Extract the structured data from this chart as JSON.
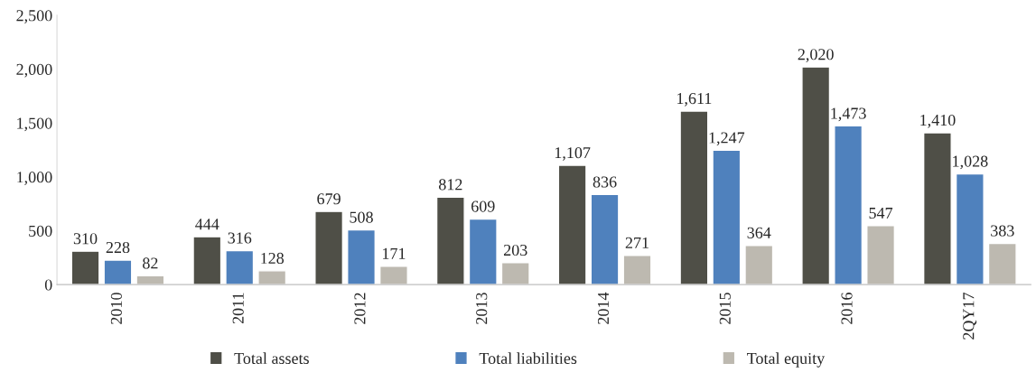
{
  "chart_data": {
    "type": "bar",
    "categories": [
      "2010",
      "2011",
      "2012",
      "2013",
      "2014",
      "2015",
      "2016",
      "2QY17"
    ],
    "series": [
      {
        "name": "Total assets",
        "color": "#4f4f47",
        "values": [
          310,
          444,
          679,
          812,
          1107,
          1611,
          2020,
          1410
        ],
        "value_labels": [
          "310",
          "444",
          "679",
          "812",
          "1,107",
          "1,611",
          "2,020",
          "1,410"
        ]
      },
      {
        "name": "Total liabilities",
        "color": "#4f81bd",
        "values": [
          228,
          316,
          508,
          609,
          836,
          1247,
          1473,
          1028
        ],
        "value_labels": [
          "228",
          "316",
          "508",
          "609",
          "836",
          "1,247",
          "1,473",
          "1,028"
        ]
      },
      {
        "name": "Total equity",
        "color": "#bdb9b0",
        "values": [
          82,
          128,
          171,
          203,
          271,
          364,
          547,
          383
        ],
        "value_labels": [
          "82",
          "128",
          "171",
          "203",
          "271",
          "364",
          "547",
          "383"
        ]
      }
    ],
    "ylim": [
      0,
      2500
    ],
    "yticks": [
      0,
      {
        "value": 500,
        "label": "500"
      },
      {
        "value": 1000,
        "label": "1,000"
      },
      {
        "value": 1500,
        "label": "1,500"
      },
      {
        "value": 2000,
        "label": "2,000"
      },
      {
        "value": 2500,
        "label": "2,500"
      }
    ],
    "grid": false,
    "legend": "bottom"
  }
}
